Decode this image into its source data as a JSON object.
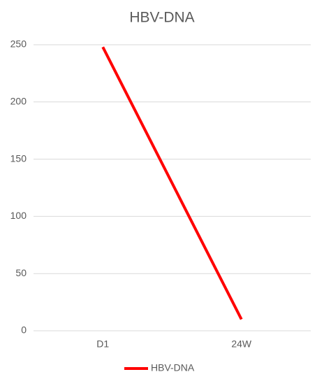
{
  "chart_data": {
    "type": "line",
    "title": "HBV-DNA",
    "categories": [
      "D1",
      "24W"
    ],
    "series": [
      {
        "name": "HBV-DNA",
        "color": "#ff0000",
        "values": [
          248,
          10
        ]
      }
    ],
    "ylim": [
      0,
      250
    ],
    "yticks": [
      0,
      50,
      100,
      150,
      200,
      250
    ],
    "grid": true,
    "legend": "bottom"
  }
}
